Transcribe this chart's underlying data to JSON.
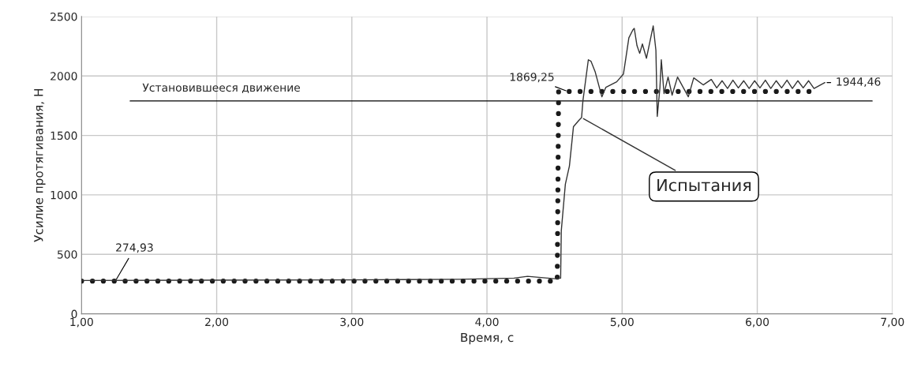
{
  "chart_data": {
    "type": "line",
    "xlabel": "Время, с",
    "ylabel": "Усилие протягивания, Н",
    "xlim": [
      1.0,
      7.0
    ],
    "xticks": [
      {
        "value": 1,
        "label": "1,00"
      },
      {
        "value": 2,
        "label": "2,00"
      },
      {
        "value": 3,
        "label": "3,00"
      },
      {
        "value": 4,
        "label": "4,00"
      },
      {
        "value": 5,
        "label": "5,00"
      },
      {
        "value": 6,
        "label": "6,00"
      },
      {
        "value": 7,
        "label": "7,00"
      }
    ],
    "ylim": [
      0,
      2500
    ],
    "yticks": [
      0,
      500,
      1000,
      1500,
      2000,
      2500
    ],
    "grid": true,
    "legend": false,
    "series": [
      {
        "color": "#1a1a1a",
        "line_style": "dotted",
        "x": [
          1.0,
          4.52,
          4.53,
          6.45
        ],
        "values": [
          274.93,
          274.93,
          1869.25,
          1869.25
        ]
      },
      {
        "name": "Испытания",
        "color": "#333333",
        "line_style": "solid",
        "x": [
          1.0,
          3.0,
          3.8,
          4.2,
          4.3,
          4.4,
          4.5,
          4.545,
          4.55,
          4.58,
          4.61,
          4.64,
          4.68,
          4.7,
          4.71,
          4.75,
          4.77,
          4.8,
          4.85,
          4.88,
          4.96,
          5.01,
          5.03,
          5.05,
          5.08,
          5.09,
          5.11,
          5.13,
          5.15,
          5.18,
          5.23,
          5.25,
          5.26,
          5.28,
          5.29,
          5.31,
          5.34,
          5.37,
          5.41,
          5.49,
          5.53,
          5.6,
          5.66,
          5.7,
          5.74,
          5.78,
          5.82,
          5.86,
          5.9,
          5.94,
          5.98,
          6.02,
          6.06,
          6.1,
          6.14,
          6.18,
          6.22,
          6.26,
          6.3,
          6.34,
          6.38,
          6.42,
          6.46,
          6.5
        ],
        "values": [
          280,
          285,
          290,
          300,
          315,
          305,
          295,
          300,
          700,
          1090,
          1243,
          1574,
          1627,
          1650,
          1792,
          2136,
          2123,
          2037,
          1825,
          1905,
          1951,
          2017,
          2169,
          2321,
          2388,
          2400,
          2255,
          2190,
          2269,
          2149,
          2421,
          2216,
          1660,
          1905,
          2136,
          1852,
          1991,
          1839,
          1991,
          1825,
          1984,
          1925,
          1971,
          1900,
          1960,
          1895,
          1965,
          1900,
          1960,
          1895,
          1960,
          1900,
          1965,
          1895,
          1960,
          1900,
          1965,
          1895,
          1960,
          1900,
          1960,
          1895,
          1920,
          1944.46
        ]
      }
    ],
    "ref_lines": [
      {
        "axis": "y",
        "value": 1790,
        "label": "Установившееся движение",
        "color": "#000000",
        "line_style": "solid"
      }
    ],
    "annotations": [
      {
        "text": "274,93",
        "x": 1.25,
        "y": 274.93
      },
      {
        "text": "1869,25",
        "x": 4.6,
        "y": 1869.25
      },
      {
        "text": "1944,46",
        "x": 6.5,
        "y": 1944.46
      }
    ]
  }
}
